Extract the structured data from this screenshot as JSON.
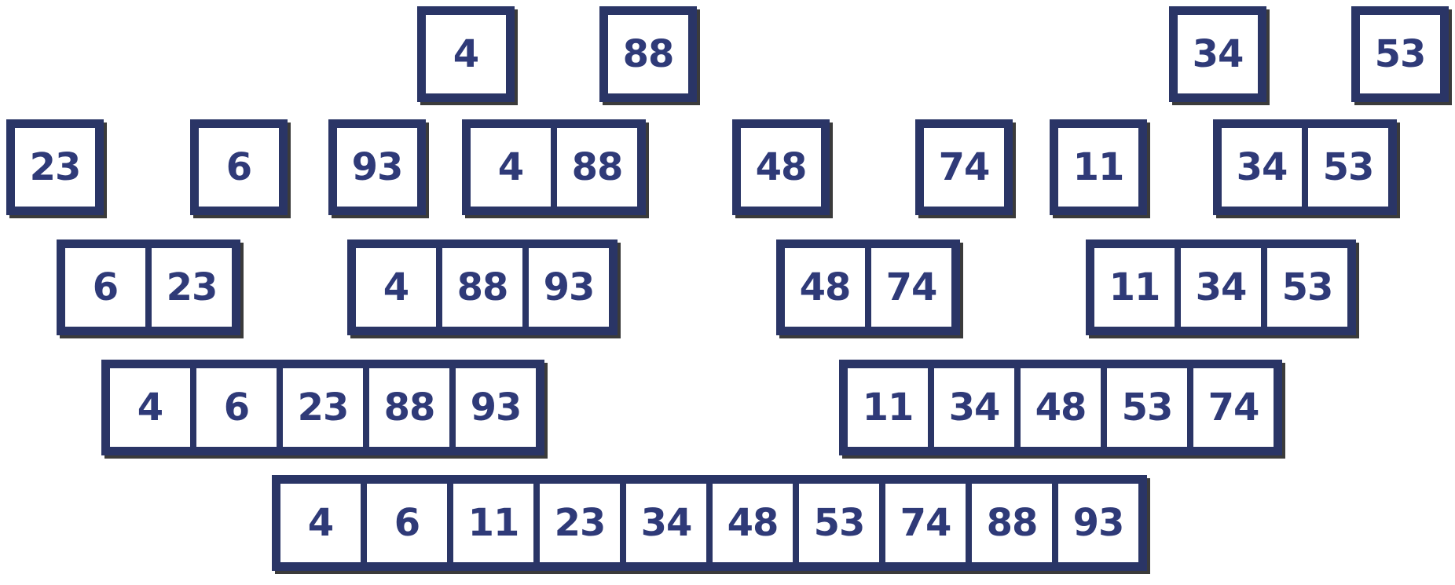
{
  "rows": [
    {
      "level": 1,
      "groups": [
        {
          "values": [
            "4"
          ]
        },
        {
          "values": [
            "88"
          ]
        },
        {
          "values": [
            "34"
          ]
        },
        {
          "values": [
            "53"
          ]
        }
      ]
    },
    {
      "level": 2,
      "groups": [
        {
          "values": [
            "23"
          ]
        },
        {
          "values": [
            "6"
          ]
        },
        {
          "values": [
            "93"
          ]
        },
        {
          "values": [
            "4",
            "88"
          ]
        },
        {
          "values": [
            "48"
          ]
        },
        {
          "values": [
            "74"
          ]
        },
        {
          "values": [
            "11"
          ]
        },
        {
          "values": [
            "34",
            "53"
          ]
        }
      ]
    },
    {
      "level": 3,
      "groups": [
        {
          "values": [
            "6",
            "23"
          ]
        },
        {
          "values": [
            "4",
            "88",
            "93"
          ]
        },
        {
          "values": [
            "48",
            "74"
          ]
        },
        {
          "values": [
            "11",
            "34",
            "53"
          ]
        }
      ]
    },
    {
      "level": 4,
      "groups": [
        {
          "values": [
            "4",
            "6",
            "23",
            "88",
            "93"
          ]
        },
        {
          "values": [
            "11",
            "34",
            "48",
            "53",
            "74"
          ]
        }
      ]
    },
    {
      "level": 5,
      "groups": [
        {
          "values": [
            "4",
            "6",
            "11",
            "23",
            "34",
            "48",
            "53",
            "74",
            "88",
            "93"
          ]
        }
      ]
    }
  ],
  "colors": {
    "border": "#2a3566",
    "text": "#2f3a78",
    "shadow": "#3b3b3b",
    "background": "#ffffff"
  }
}
